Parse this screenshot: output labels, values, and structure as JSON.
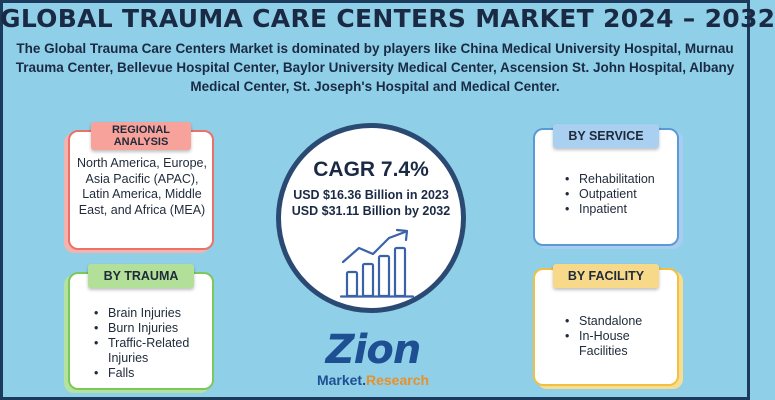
{
  "title": "GLOBAL TRAUMA CARE CENTERS MARKET 2024 – 2032",
  "subtitle": "The Global Trauma Care Centers Market is dominated by players like China Medical University Hospital, Murnau Trauma Center, Bellevue Hospital Center, Baylor University Medical Center, Ascension St. John Hospital, Albany Medical Center, St. Joseph's Hospital and Medical Center.",
  "regional": {
    "label": "REGIONAL ANALYSIS",
    "text": "North America, Europe, Asia Pacific (APAC), Latin America, Middle East, and Africa (MEA)"
  },
  "trauma": {
    "label": "BY TRAUMA",
    "items": [
      "Brain Injuries",
      "Burn Injuries",
      "Traffic-Related Injuries",
      "Falls"
    ]
  },
  "service": {
    "label": "BY SERVICE",
    "items": [
      "Rehabilitation",
      "Outpatient",
      "Inpatient"
    ]
  },
  "facility": {
    "label": "BY FACILITY",
    "items": [
      "Standalone",
      "In-House Facilities"
    ]
  },
  "center": {
    "cagr": "CAGR 7.4%",
    "value_2023": "USD $16.36 Billion in 2023",
    "value_2032": "USD $31.11 Billion by 2032",
    "icon": "growth-chart-icon"
  },
  "logo": {
    "word": "Zion",
    "sub_market": "Market",
    "sub_research": "Research"
  },
  "colors": {
    "background": "#8fd0e8",
    "regional": "#e9726a",
    "trauma": "#7cc85c",
    "service": "#5a9bd6",
    "facility": "#f0c044",
    "navy": "#2a4a74"
  }
}
